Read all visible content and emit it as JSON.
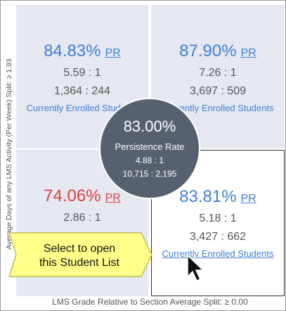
{
  "y_axis_label": "Average Days of any LMS Activity (Per Week) Split: ≥ 1.93",
  "x_axis_label": "LMS Grade Relative to Section Average Split: ≥ 0.00",
  "quadrants": [
    {
      "rate": "84.83%",
      "pr": "PR",
      "ratio": "5.59 : 1",
      "counts": "1,364 : 244",
      "link": "Currently Enrolled Students"
    },
    {
      "rate": "87.90%",
      "pr": "PR",
      "ratio": "7.26 : 1",
      "counts": "3,697 : 509",
      "link": "Currently Enrolled Students"
    },
    {
      "rate": "74.06%",
      "pr": "PR",
      "ratio": "2.86 : 1"
    },
    {
      "rate": "83.81%",
      "pr": "PR",
      "ratio": "5.18 : 1",
      "counts": "3,427 : 662",
      "link": "Currently Enrolled Students"
    }
  ],
  "center": {
    "rate": "83.00%",
    "label": "Persistence Rate",
    "ratio": "4.88 : 1",
    "counts": "10,715 : 2,195"
  },
  "tooltip": [
    "Select to open",
    "this Student List"
  ]
}
